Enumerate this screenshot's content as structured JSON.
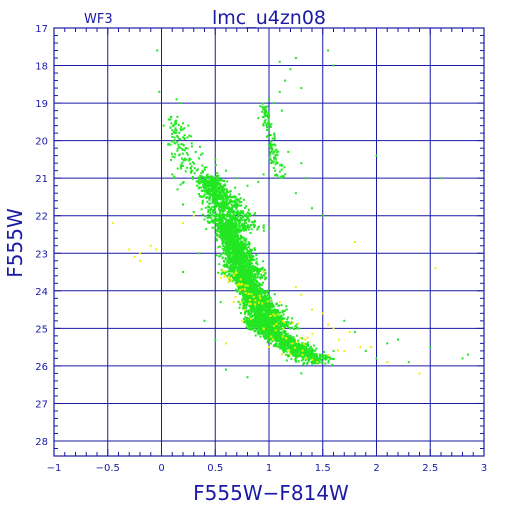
{
  "chart_data": {
    "type": "scatter",
    "title": "lmc_u4zn08",
    "corner_label": "WF3",
    "xlabel": "F555W−F814W",
    "ylabel": "F555W",
    "xlim": [
      -1,
      3
    ],
    "ylim": [
      28.4,
      17
    ],
    "y_inverted": true,
    "xticks": [
      -1,
      -0.5,
      0,
      0.5,
      1,
      1.5,
      2,
      2.5,
      3
    ],
    "xtick_labels": [
      "−1",
      "−0.5",
      "0",
      "0.5",
      "1",
      "1.5",
      "2",
      "2.5",
      "3"
    ],
    "yticks": [
      17,
      18,
      19,
      20,
      21,
      22,
      23,
      24,
      25,
      26,
      27,
      28
    ],
    "ytick_labels": [
      "17",
      "18",
      "19",
      "20",
      "21",
      "22",
      "23",
      "24",
      "25",
      "26",
      "27",
      "28"
    ],
    "grid": true,
    "colors": {
      "frame": "#1a1aa6",
      "series_main": "#22e622",
      "series_faint": "#f2f000"
    },
    "series": [
      {
        "color": "#22e622",
        "points": [
          [
            -0.04,
            17.6
          ],
          [
            -0.02,
            18.7
          ],
          [
            0.02,
            19.6
          ],
          [
            0.14,
            18.9
          ],
          [
            0.18,
            19.0
          ],
          [
            0.2,
            19.7
          ],
          [
            0.1,
            19.9
          ],
          [
            0.25,
            19.6
          ],
          [
            1.1,
            17.9
          ],
          [
            1.2,
            18.1
          ],
          [
            1.25,
            17.8
          ],
          [
            1.55,
            17.6
          ],
          [
            1.6,
            18.0
          ],
          [
            1.15,
            18.4
          ],
          [
            1.1,
            18.7
          ],
          [
            1.3,
            18.6
          ],
          [
            1.0,
            18.9
          ],
          [
            1.05,
            19.0
          ],
          [
            1.12,
            19.2
          ],
          [
            2.0,
            20.4
          ],
          [
            2.6,
            21.0
          ],
          [
            0.9,
            19.4
          ],
          [
            0.95,
            19.6
          ],
          [
            1.05,
            20.1
          ],
          [
            1.18,
            20.3
          ],
          [
            1.3,
            20.6
          ],
          [
            1.35,
            21.0
          ],
          [
            1.25,
            21.4
          ],
          [
            1.4,
            21.8
          ],
          [
            1.5,
            22.0
          ],
          [
            0.5,
            20.5
          ],
          [
            0.6,
            20.8
          ],
          [
            0.7,
            21.0
          ],
          [
            0.8,
            21.2
          ],
          [
            0.9,
            21.1
          ],
          [
            0.95,
            20.9
          ],
          [
            0.1,
            20.9
          ],
          [
            0.15,
            21.3
          ],
          [
            0.2,
            21.7
          ],
          [
            0.3,
            21.9
          ],
          [
            0.4,
            22.1
          ],
          [
            0.35,
            23.0
          ],
          [
            0.9,
            25.0
          ],
          [
            1.2,
            25.2
          ],
          [
            1.6,
            25.6
          ],
          [
            1.9,
            25.6
          ],
          [
            2.1,
            25.4
          ],
          [
            2.2,
            25.3
          ],
          [
            2.5,
            25.5
          ],
          [
            2.8,
            25.8
          ],
          [
            2.85,
            25.7
          ],
          [
            1.7,
            24.8
          ],
          [
            1.8,
            25.1
          ],
          [
            2.3,
            25.9
          ],
          [
            2.0,
            25.8
          ],
          [
            1.3,
            26.2
          ],
          [
            0.8,
            26.3
          ],
          [
            0.6,
            26.1
          ],
          [
            0.2,
            23.5
          ],
          [
            0.55,
            24.3
          ],
          [
            0.4,
            24.8
          ],
          [
            0.5,
            25.3
          ]
        ]
      },
      {
        "color": "#f2f000",
        "points": [
          [
            -0.45,
            22.2
          ],
          [
            -0.3,
            22.9
          ],
          [
            -0.25,
            23.1
          ],
          [
            -0.2,
            23.0
          ],
          [
            -0.1,
            22.8
          ],
          [
            -0.05,
            22.9
          ],
          [
            -0.2,
            23.2
          ],
          [
            0.2,
            22.2
          ],
          [
            0.3,
            22.0
          ],
          [
            1.8,
            22.7
          ],
          [
            2.55,
            23.4
          ],
          [
            0.95,
            23.5
          ],
          [
            1.25,
            23.9
          ],
          [
            1.3,
            24.1
          ],
          [
            1.1,
            24.3
          ],
          [
            1.4,
            24.5
          ],
          [
            1.5,
            24.6
          ],
          [
            1.55,
            24.9
          ],
          [
            1.6,
            25.0
          ],
          [
            1.75,
            25.1
          ],
          [
            1.65,
            25.3
          ],
          [
            1.85,
            25.5
          ],
          [
            1.95,
            25.5
          ],
          [
            2.1,
            25.9
          ],
          [
            2.4,
            26.2
          ],
          [
            1.0,
            25.5
          ],
          [
            1.2,
            25.7
          ],
          [
            0.6,
            25.4
          ],
          [
            0.75,
            24.8
          ],
          [
            1.45,
            25.9
          ],
          [
            1.35,
            25.8
          ],
          [
            0.95,
            25.0
          ]
        ]
      }
    ],
    "density_clouds": [
      {
        "color": "#22e622",
        "count": 900,
        "cx": [
          0.45,
          0.7
        ],
        "y": [
          21.0,
          22.4
        ],
        "spread": [
          0.18,
          0.35
        ]
      },
      {
        "color": "#22e622",
        "count": 1300,
        "cx": [
          0.6,
          0.8
        ],
        "y": [
          22.2,
          23.7
        ],
        "spread": [
          0.12,
          0.3
        ]
      },
      {
        "color": "#22e622",
        "count": 1700,
        "cx": [
          0.75,
          1.05
        ],
        "y": [
          23.6,
          25.0
        ],
        "spread": [
          0.12,
          0.32
        ]
      },
      {
        "color": "#22e622",
        "count": 1100,
        "cx": [
          0.85,
          1.45
        ],
        "y": [
          24.8,
          25.9
        ],
        "spread": [
          0.15,
          0.25
        ]
      },
      {
        "color": "#22e622",
        "count": 120,
        "cx": [
          0.95,
          1.1
        ],
        "y": [
          19.0,
          21.0
        ],
        "spread": [
          0.04,
          0.12
        ]
      },
      {
        "color": "#22e622",
        "count": 140,
        "cx": [
          0.1,
          0.35
        ],
        "y": [
          19.4,
          21.2
        ],
        "spread": [
          0.08,
          0.4
        ]
      },
      {
        "color": "#f2f000",
        "count": 80,
        "cx": [
          0.6,
          1.4
        ],
        "y": [
          23.5,
          25.8
        ],
        "spread": [
          0.15,
          0.45
        ]
      }
    ]
  }
}
